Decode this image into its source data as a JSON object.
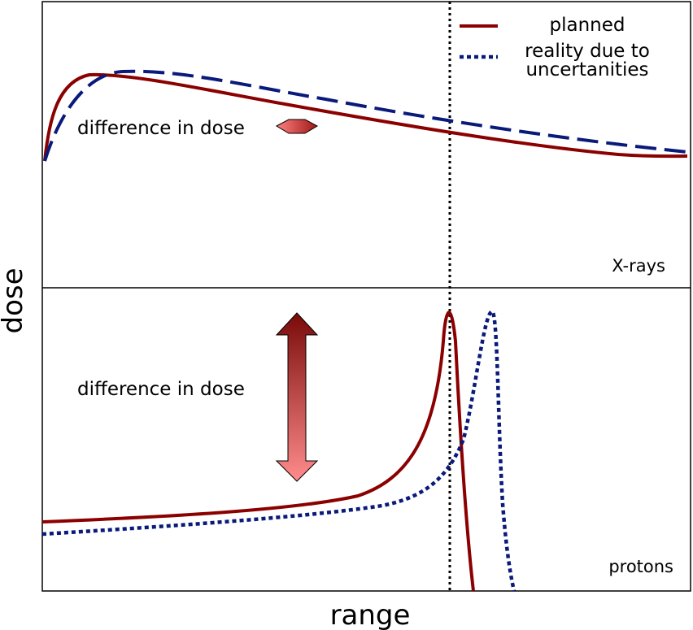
{
  "legend": {
    "items": [
      {
        "label": "planned"
      },
      {
        "label_lines": [
          "reality due to",
          "uncertanities"
        ]
      }
    ]
  },
  "panels": [
    {
      "label": "X-rays",
      "annotation": "difference in dose"
    },
    {
      "label": "protons",
      "annotation": "difference in dose"
    }
  ],
  "axes": {
    "y_label": "dose",
    "x_label": "range"
  }
}
